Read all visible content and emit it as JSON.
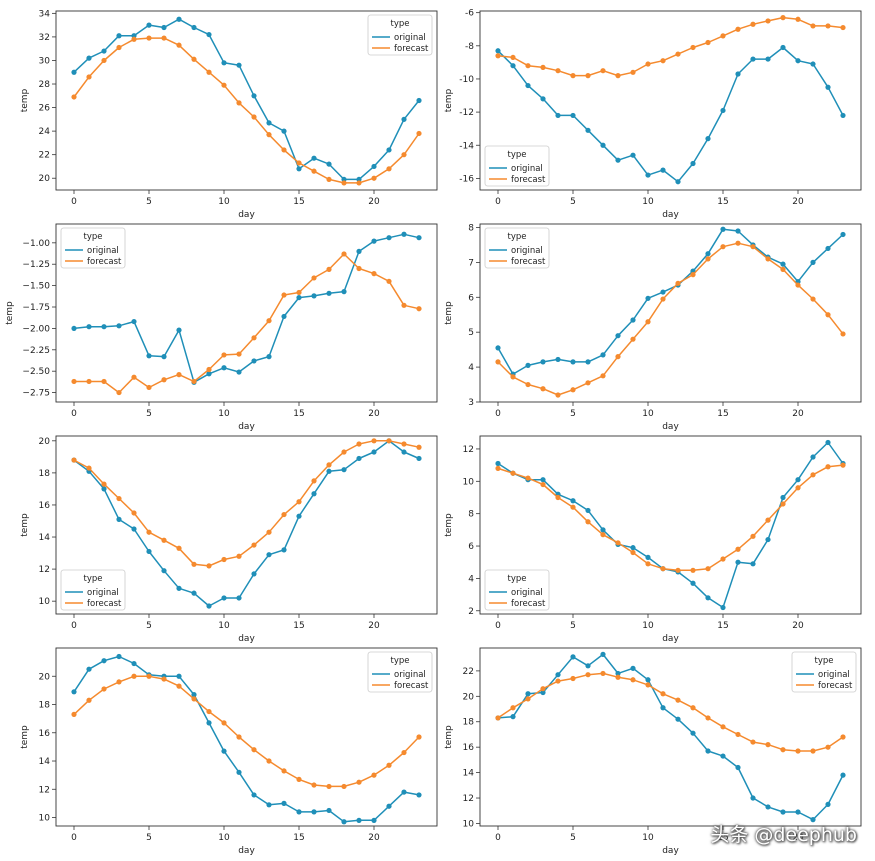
{
  "colors": {
    "original": "#1f8fb8",
    "forecast": "#f58a2e",
    "axis": "#333333"
  },
  "watermark": "头条 @deephub",
  "chart_data": [
    {
      "type": "line",
      "xlabel": "day",
      "ylabel": "temp",
      "legend_title": "type",
      "legend": "top-right",
      "xlim": [
        -1.2,
        24.2
      ],
      "ylim": [
        19.0,
        34.2
      ],
      "xticks": [
        0,
        5,
        10,
        15,
        20
      ],
      "yticks": [
        20,
        22,
        24,
        26,
        28,
        30,
        32,
        34
      ],
      "x": [
        0,
        1,
        2,
        3,
        4,
        5,
        6,
        7,
        8,
        9,
        10,
        11,
        12,
        13,
        14,
        15,
        16,
        17,
        18,
        19,
        20,
        21,
        22,
        23
      ],
      "series": [
        {
          "name": "original",
          "values": [
            29.0,
            30.2,
            30.8,
            32.1,
            32.1,
            33.0,
            32.8,
            33.5,
            32.8,
            32.2,
            29.8,
            29.6,
            27.0,
            24.7,
            24.0,
            20.8,
            21.7,
            21.2,
            19.9,
            19.9,
            21.0,
            22.4,
            25.0,
            26.6
          ]
        },
        {
          "name": "forecast",
          "values": [
            26.9,
            28.6,
            30.0,
            31.1,
            31.8,
            31.9,
            31.9,
            31.3,
            30.1,
            29.0,
            27.9,
            26.4,
            25.2,
            23.7,
            22.4,
            21.3,
            20.6,
            19.9,
            19.6,
            19.6,
            20.0,
            20.8,
            22.0,
            23.8
          ]
        }
      ]
    },
    {
      "type": "line",
      "xlabel": "day",
      "ylabel": "temp",
      "legend_title": "type",
      "legend": "lower-left",
      "xlim": [
        -1.2,
        24.2
      ],
      "ylim": [
        -16.7,
        -5.9
      ],
      "xticks": [
        0,
        5,
        10,
        15,
        20
      ],
      "yticks": [
        -16,
        -14,
        -12,
        -10,
        -8,
        -6
      ],
      "x": [
        0,
        1,
        2,
        3,
        4,
        5,
        6,
        7,
        8,
        9,
        10,
        11,
        12,
        13,
        14,
        15,
        16,
        17,
        18,
        19,
        20,
        21,
        22,
        23
      ],
      "series": [
        {
          "name": "original",
          "values": [
            -8.3,
            -9.2,
            -10.4,
            -11.2,
            -12.2,
            -12.2,
            -13.1,
            -14.0,
            -14.9,
            -14.6,
            -15.8,
            -15.5,
            -16.2,
            -15.1,
            -13.6,
            -11.9,
            -9.7,
            -8.8,
            -8.8,
            -8.1,
            -8.9,
            -9.1,
            -10.5,
            -12.2
          ]
        },
        {
          "name": "forecast",
          "values": [
            -8.6,
            -8.7,
            -9.2,
            -9.3,
            -9.5,
            -9.8,
            -9.8,
            -9.5,
            -9.8,
            -9.6,
            -9.1,
            -8.9,
            -8.5,
            -8.1,
            -7.8,
            -7.4,
            -7.0,
            -6.7,
            -6.5,
            -6.3,
            -6.4,
            -6.8,
            -6.8,
            -6.9
          ]
        }
      ]
    },
    {
      "type": "line",
      "xlabel": "day",
      "ylabel": "temp",
      "legend_title": "type",
      "legend": "top-left",
      "xlim": [
        -1.2,
        24.2
      ],
      "ylim": [
        -2.86,
        -0.78
      ],
      "xticks": [
        0,
        5,
        10,
        15,
        20
      ],
      "yticks": [
        -2.75,
        -2.5,
        -2.25,
        -2.0,
        -1.75,
        -1.5,
        -1.25,
        -1.0
      ],
      "ytick_labels": [
        "−2.75",
        "−2.50",
        "−2.25",
        "−2.00",
        "−1.75",
        "−1.50",
        "−1.25",
        "−1.00"
      ],
      "x": [
        0,
        1,
        2,
        3,
        4,
        5,
        6,
        7,
        8,
        9,
        10,
        11,
        12,
        13,
        14,
        15,
        16,
        17,
        18,
        19,
        20,
        21,
        22,
        23
      ],
      "series": [
        {
          "name": "original",
          "values": [
            -2.0,
            -1.98,
            -1.98,
            -1.97,
            -1.92,
            -2.32,
            -2.33,
            -2.02,
            -2.63,
            -2.53,
            -2.46,
            -2.51,
            -2.38,
            -2.33,
            -1.86,
            -1.64,
            -1.62,
            -1.59,
            -1.57,
            -1.1,
            -0.98,
            -0.94,
            -0.9,
            -0.94
          ]
        },
        {
          "name": "forecast",
          "values": [
            -2.62,
            -2.62,
            -2.62,
            -2.75,
            -2.57,
            -2.69,
            -2.6,
            -2.54,
            -2.62,
            -2.48,
            -2.31,
            -2.3,
            -2.11,
            -1.91,
            -1.61,
            -1.58,
            -1.41,
            -1.31,
            -1.13,
            -1.3,
            -1.36,
            -1.45,
            -1.73,
            -1.77
          ]
        }
      ]
    },
    {
      "type": "line",
      "xlabel": "day",
      "ylabel": "temp",
      "legend_title": "type",
      "legend": "top-left",
      "xlim": [
        -1.2,
        24.2
      ],
      "ylim": [
        3.0,
        8.1
      ],
      "xticks": [
        0,
        5,
        10,
        15,
        20
      ],
      "yticks": [
        3,
        4,
        5,
        6,
        7,
        8
      ],
      "x": [
        0,
        1,
        2,
        3,
        4,
        5,
        6,
        7,
        8,
        9,
        10,
        11,
        12,
        13,
        14,
        15,
        16,
        17,
        18,
        19,
        20,
        21,
        22,
        23
      ],
      "series": [
        {
          "name": "original",
          "values": [
            4.55,
            3.8,
            4.05,
            4.15,
            4.22,
            4.15,
            4.15,
            4.35,
            4.9,
            5.35,
            5.97,
            6.15,
            6.35,
            6.75,
            7.25,
            7.95,
            7.9,
            7.5,
            7.15,
            6.95,
            6.45,
            7.0,
            7.4,
            7.8
          ]
        },
        {
          "name": "forecast",
          "values": [
            4.15,
            3.72,
            3.5,
            3.38,
            3.2,
            3.35,
            3.55,
            3.75,
            4.3,
            4.8,
            5.3,
            5.95,
            6.4,
            6.65,
            7.1,
            7.45,
            7.55,
            7.45,
            7.1,
            6.8,
            6.35,
            5.95,
            5.5,
            4.95
          ]
        }
      ]
    },
    {
      "type": "line",
      "xlabel": "day",
      "ylabel": "temp",
      "legend_title": "type",
      "legend": "lower-left",
      "xlim": [
        -1.2,
        24.2
      ],
      "ylim": [
        9.2,
        20.3
      ],
      "xticks": [
        0,
        5,
        10,
        15,
        20
      ],
      "yticks": [
        10,
        12,
        14,
        16,
        18,
        20
      ],
      "x": [
        0,
        1,
        2,
        3,
        4,
        5,
        6,
        7,
        8,
        9,
        10,
        11,
        12,
        13,
        14,
        15,
        16,
        17,
        18,
        19,
        20,
        21,
        22,
        23
      ],
      "series": [
        {
          "name": "original",
          "values": [
            18.8,
            18.1,
            17.0,
            15.1,
            14.5,
            13.1,
            11.9,
            10.8,
            10.5,
            9.7,
            10.2,
            10.2,
            11.7,
            12.9,
            13.2,
            15.3,
            16.7,
            18.1,
            18.2,
            18.9,
            19.3,
            20.0,
            19.3,
            18.9
          ]
        },
        {
          "name": "forecast",
          "values": [
            18.8,
            18.3,
            17.3,
            16.4,
            15.5,
            14.3,
            13.8,
            13.3,
            12.3,
            12.2,
            12.6,
            12.8,
            13.5,
            14.3,
            15.4,
            16.2,
            17.5,
            18.5,
            19.3,
            19.8,
            20.0,
            20.0,
            19.8,
            19.6
          ]
        }
      ]
    },
    {
      "type": "line",
      "xlabel": "day",
      "ylabel": "temp",
      "legend_title": "type",
      "legend": "lower-left",
      "xlim": [
        -1.2,
        24.2
      ],
      "ylim": [
        1.8,
        12.8
      ],
      "xticks": [
        0,
        5,
        10,
        15,
        20
      ],
      "yticks": [
        2,
        4,
        6,
        8,
        10,
        12
      ],
      "x": [
        0,
        1,
        2,
        3,
        4,
        5,
        6,
        7,
        8,
        9,
        10,
        11,
        12,
        13,
        14,
        15,
        16,
        17,
        18,
        19,
        20,
        21,
        22,
        23
      ],
      "series": [
        {
          "name": "original",
          "values": [
            11.1,
            10.5,
            10.1,
            10.1,
            9.2,
            8.8,
            8.2,
            7.0,
            6.1,
            5.9,
            5.3,
            4.6,
            4.4,
            3.7,
            2.8,
            2.2,
            5.0,
            4.9,
            6.4,
            9.0,
            10.1,
            11.5,
            12.4,
            11.1
          ]
        },
        {
          "name": "forecast",
          "values": [
            10.8,
            10.5,
            10.2,
            9.8,
            9.0,
            8.4,
            7.5,
            6.7,
            6.2,
            5.6,
            4.9,
            4.6,
            4.5,
            4.5,
            4.6,
            5.2,
            5.8,
            6.6,
            7.6,
            8.6,
            9.6,
            10.4,
            10.9,
            11.0
          ]
        }
      ]
    },
    {
      "type": "line",
      "xlabel": "day",
      "ylabel": "temp",
      "legend_title": "type",
      "legend": "top-right",
      "xlim": [
        -1.2,
        24.2
      ],
      "ylim": [
        9.4,
        22.0
      ],
      "xticks": [
        0,
        5,
        10,
        15,
        20
      ],
      "yticks": [
        10,
        12,
        14,
        16,
        18,
        20
      ],
      "x": [
        0,
        1,
        2,
        3,
        4,
        5,
        6,
        7,
        8,
        9,
        10,
        11,
        12,
        13,
        14,
        15,
        16,
        17,
        18,
        19,
        20,
        21,
        22,
        23
      ],
      "series": [
        {
          "name": "original",
          "values": [
            18.9,
            20.5,
            21.1,
            21.4,
            20.9,
            20.1,
            20.0,
            20.0,
            18.7,
            16.7,
            14.7,
            13.2,
            11.6,
            10.9,
            11.0,
            10.4,
            10.4,
            10.5,
            9.7,
            9.8,
            9.8,
            10.8,
            11.8,
            11.6
          ]
        },
        {
          "name": "forecast",
          "values": [
            17.3,
            18.3,
            19.1,
            19.6,
            20.0,
            20.0,
            19.8,
            19.3,
            18.4,
            17.5,
            16.7,
            15.7,
            14.8,
            14.0,
            13.3,
            12.7,
            12.3,
            12.2,
            12.2,
            12.5,
            13.0,
            13.7,
            14.6,
            15.7
          ]
        }
      ]
    },
    {
      "type": "line",
      "xlabel": "day",
      "ylabel": "temp",
      "legend_title": "type",
      "legend": "top-right",
      "xlim": [
        -1.2,
        24.2
      ],
      "ylim": [
        9.8,
        23.8
      ],
      "xticks": [
        0,
        5,
        10,
        15,
        20
      ],
      "yticks": [
        10,
        12,
        14,
        16,
        18,
        20,
        22
      ],
      "x": [
        0,
        1,
        2,
        3,
        4,
        5,
        6,
        7,
        8,
        9,
        10,
        11,
        12,
        13,
        14,
        15,
        16,
        17,
        18,
        19,
        20,
        21,
        22,
        23
      ],
      "series": [
        {
          "name": "original",
          "values": [
            18.3,
            18.4,
            20.2,
            20.3,
            21.7,
            23.1,
            22.4,
            23.3,
            21.8,
            22.2,
            21.3,
            19.1,
            18.2,
            17.1,
            15.7,
            15.3,
            14.4,
            12.0,
            11.3,
            10.9,
            10.9,
            10.3,
            11.5,
            13.8
          ]
        },
        {
          "name": "forecast",
          "values": [
            18.3,
            19.1,
            19.8,
            20.6,
            21.2,
            21.4,
            21.7,
            21.8,
            21.5,
            21.3,
            20.9,
            20.2,
            19.7,
            19.1,
            18.3,
            17.6,
            17.0,
            16.4,
            16.2,
            15.8,
            15.7,
            15.7,
            16.0,
            16.8
          ]
        }
      ]
    }
  ]
}
